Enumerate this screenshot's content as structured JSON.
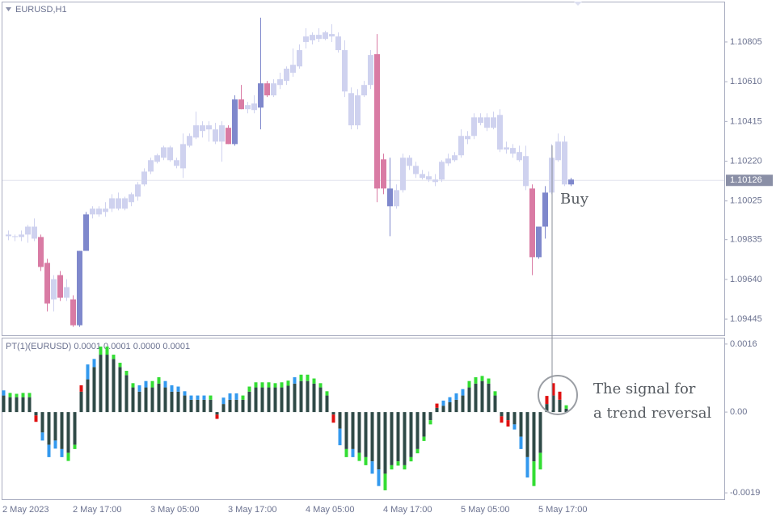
{
  "chart_data": [
    {
      "type": "candlestick",
      "title": "EURUSD,H1",
      "categories": [
        "2 May 2023",
        null,
        null,
        null,
        null,
        null,
        null,
        null,
        null,
        null,
        null,
        "2 May 17:00",
        null,
        null,
        null,
        null,
        null,
        null,
        null,
        null,
        null,
        null,
        null,
        "3 May 05:00",
        null,
        null,
        null,
        null,
        null,
        null,
        null,
        null,
        null,
        null,
        null,
        "3 May 17:00",
        null,
        null,
        null,
        null,
        null,
        null,
        null,
        null,
        null,
        null,
        null,
        "4 May 05:00",
        null,
        null,
        null,
        null,
        null,
        null,
        null,
        null,
        null,
        null,
        null,
        "4 May 17:00",
        null,
        null,
        null,
        null,
        null,
        null,
        null,
        null,
        null,
        null,
        null,
        "5 May 05:00",
        null,
        null,
        null,
        null,
        null,
        null,
        null,
        null,
        null,
        null,
        null,
        "5 May 17:00",
        null,
        null,
        null,
        null
      ],
      "open": [
        1.0986,
        1.09852,
        1.09848,
        1.0986,
        1.09899,
        1.09848,
        1.09721,
        1.09542,
        1.09661,
        1.0955,
        1.09542,
        1.09415,
        1.0978,
        1.09959,
        1.09959,
        1.09987,
        1.09987,
        1.10038,
        1.09987,
        1.10019,
        1.10046,
        1.10106,
        1.10169,
        1.10217,
        1.10237,
        1.10288,
        1.10225,
        1.10185,
        1.10296,
        1.10336,
        1.10368,
        1.10396,
        1.10376,
        1.10316,
        1.10384,
        1.10304,
        1.10523,
        1.10475,
        1.10471,
        1.10483,
        1.10602,
        1.10543,
        1.10594,
        1.10614,
        1.10654,
        1.10685,
        1.10805,
        1.10813,
        1.1084,
        1.1082,
        1.10844,
        1.10832,
        1.10765,
        1.10554,
        1.10396,
        1.10543,
        1.10594,
        1.10745,
        1.10229,
        1.10086,
        1.09999,
        1.10078,
        1.10237,
        1.10197,
        1.10157,
        1.10146,
        1.1013,
        1.1013,
        1.10209,
        1.10225,
        1.10249,
        1.10344,
        1.10344,
        1.10435,
        1.10384,
        1.10435,
        1.10447,
        1.10277,
        1.10285,
        1.10265,
        1.10245,
        1.10086,
        1.09749,
        1.09899,
        1.10066,
        1.10225,
        1.10316,
        1.10106
      ],
      "high": [
        1.0988,
        1.0986,
        1.0988,
        1.09907,
        1.09939,
        1.0986,
        1.09741,
        1.09661,
        1.09681,
        1.09641,
        1.09562,
        1.0978,
        1.09971,
        1.09999,
        1.09999,
        1.10019,
        1.10058,
        1.10066,
        1.10046,
        1.10066,
        1.10118,
        1.10185,
        1.10237,
        1.10257,
        1.10296,
        1.10296,
        1.10237,
        1.10356,
        1.10356,
        1.10463,
        1.10416,
        1.10416,
        1.10408,
        1.10416,
        1.10396,
        1.10543,
        1.10594,
        1.10511,
        1.10543,
        1.10924,
        1.10614,
        1.10622,
        1.10654,
        1.10685,
        1.10773,
        1.10793,
        1.10872,
        1.10852,
        1.10872,
        1.1086,
        1.10892,
        1.10852,
        1.10813,
        1.10582,
        1.10574,
        1.10614,
        1.10765,
        1.10844,
        1.10257,
        1.10237,
        1.10106,
        1.10257,
        1.10249,
        1.10217,
        1.10177,
        1.10169,
        1.10157,
        1.10225,
        1.10257,
        1.10265,
        1.10376,
        1.10368,
        1.10455,
        1.10455,
        1.10455,
        1.10463,
        1.10475,
        1.10316,
        1.10304,
        1.10296,
        1.10296,
        1.10106,
        1.09899,
        1.10098,
        1.10304,
        1.10356,
        1.10344,
        1.10138
      ],
      "low": [
        1.09832,
        1.09828,
        1.09828,
        1.0982,
        1.09828,
        1.09681,
        1.09483,
        1.09483,
        1.09534,
        1.09534,
        1.09407,
        1.09407,
        1.0978,
        1.09939,
        1.09947,
        1.09947,
        1.09971,
        1.09979,
        1.09979,
        1.09999,
        1.10026,
        1.10098,
        1.10157,
        1.10209,
        1.10225,
        1.10217,
        1.10185,
        1.10138,
        1.10288,
        1.10328,
        1.10336,
        1.10316,
        1.10304,
        1.10217,
        1.10304,
        1.10296,
        1.10475,
        1.10455,
        1.10455,
        1.10376,
        1.10535,
        1.10535,
        1.10574,
        1.10594,
        1.10634,
        1.10674,
        1.10773,
        1.10793,
        1.10805,
        1.10813,
        1.10805,
        1.10753,
        1.10535,
        1.10376,
        1.10376,
        1.10535,
        1.10574,
        1.10019,
        1.10058,
        1.09852,
        1.09987,
        1.10066,
        1.10177,
        1.10138,
        1.1013,
        1.10118,
        1.10098,
        1.10118,
        1.10197,
        1.10217,
        1.10237,
        1.10304,
        1.10328,
        1.10396,
        1.10368,
        1.10376,
        1.10265,
        1.10257,
        1.10237,
        1.10217,
        1.10078,
        1.09661,
        1.09741,
        1.0984,
        1.10058,
        1.10217,
        1.10098,
        1.10098
      ],
      "close": [
        1.09852,
        1.09848,
        1.0986,
        1.09899,
        1.0984,
        1.09701,
        1.09522,
        1.09641,
        1.0955,
        1.09602,
        1.09415,
        1.0978,
        1.09959,
        1.09987,
        1.09987,
        1.09971,
        1.10038,
        1.09987,
        1.10038,
        1.10058,
        1.10106,
        1.10169,
        1.10225,
        1.10249,
        1.10288,
        1.10225,
        1.10197,
        1.10304,
        1.10344,
        1.10396,
        1.10396,
        1.10376,
        1.10316,
        1.10396,
        1.10304,
        1.10523,
        1.10475,
        1.10495,
        1.10503,
        1.10602,
        1.10543,
        1.10602,
        1.10622,
        1.10674,
        1.10693,
        1.10765,
        1.10832,
        1.1084,
        1.1082,
        1.10852,
        1.10832,
        1.10765,
        1.10562,
        1.10396,
        1.10543,
        1.10594,
        1.10741,
        1.10086,
        1.10086,
        1.09999,
        1.10078,
        1.10237,
        1.10197,
        1.10157,
        1.10138,
        1.1013,
        1.10118,
        1.10217,
        1.10233,
        1.10249,
        1.10344,
        1.10328,
        1.10435,
        1.10408,
        1.10435,
        1.10384,
        1.10277,
        1.10288,
        1.10257,
        1.10225,
        1.10098,
        1.09749,
        1.09899,
        1.10066,
        1.10237,
        1.10316,
        1.10106,
        1.1013
      ],
      "colors": [
        "#cfd2ef",
        "#cfd2ef",
        "#cfd2ef",
        "#cfd2ef",
        "#cfd2ef",
        "#d97ba4",
        "#d97ba4",
        "#cfd2ef",
        "#d97ba4",
        "#cfd2ef",
        "#d97ba4",
        "#7f88cc",
        "#7f88cc",
        "#cfd2ef",
        "#cfd2ef",
        "#cfd2ef",
        "#cfd2ef",
        "#cfd2ef",
        "#cfd2ef",
        "#cfd2ef",
        "#cfd2ef",
        "#cfd2ef",
        "#cfd2ef",
        "#cfd2ef",
        "#cfd2ef",
        "#cfd2ef",
        "#cfd2ef",
        "#cfd2ef",
        "#cfd2ef",
        "#cfd2ef",
        "#cfd2ef",
        "#cfd2ef",
        "#cfd2ef",
        "#cfd2ef",
        "#d97ba4",
        "#7f88cc",
        "#d97ba4",
        "#cfd2ef",
        "#cfd2ef",
        "#7f88cc",
        "#d97ba4",
        "#cfd2ef",
        "#cfd2ef",
        "#cfd2ef",
        "#cfd2ef",
        "#cfd2ef",
        "#cfd2ef",
        "#cfd2ef",
        "#cfd2ef",
        "#cfd2ef",
        "#cfd2ef",
        "#cfd2ef",
        "#cfd2ef",
        "#cfd2ef",
        "#cfd2ef",
        "#cfd2ef",
        "#cfd2ef",
        "#d97ba4",
        "#d97ba4",
        "#7f88cc",
        "#cfd2ef",
        "#cfd2ef",
        "#cfd2ef",
        "#cfd2ef",
        "#cfd2ef",
        "#cfd2ef",
        "#cfd2ef",
        "#cfd2ef",
        "#cfd2ef",
        "#cfd2ef",
        "#cfd2ef",
        "#cfd2ef",
        "#cfd2ef",
        "#cfd2ef",
        "#cfd2ef",
        "#cfd2ef",
        "#cfd2ef",
        "#cfd2ef",
        "#cfd2ef",
        "#cfd2ef",
        "#cfd2ef",
        "#d97ba4",
        "#7f88cc",
        "#7f88cc",
        "#cfd2ef",
        "#cfd2ef",
        "#cfd2ef",
        "#7f88cc"
      ],
      "ylim": [
        1.09366,
        1.11003
      ],
      "yticks": [
        1.10805,
        {
          "value": 1.1061,
          "label": "1.10610"
        },
        1.10415,
        {
          "value": 1.1022,
          "label": "1.10220"
        },
        1.10025,
        1.09835,
        {
          "value": 1.0964,
          "label": "1.09640"
        },
        1.09445
      ],
      "last_price": 1.10126,
      "annotations": [
        "Buy"
      ]
    },
    {
      "type": "histogram-indicator",
      "title": "PT(1)(EURUSD) 0.0001 0.0001 0.0000 0.0001",
      "values": [
        0.00039,
        0.00035,
        0.00035,
        0.00035,
        0.00035,
        -8e-05,
        -0.00048,
        -0.00077,
        -0.00067,
        -0.00087,
        -0.00096,
        -0.00077,
        0.00048,
        0.00077,
        0.00106,
        0.00135,
        0.00135,
        0.00125,
        0.00106,
        0.00087,
        0.00058,
        0.00048,
        0.00058,
        0.00058,
        0.00067,
        0.00058,
        0.00048,
        0.00048,
        0.00039,
        0.00029,
        0.00029,
        0.00029,
        0.00029,
        -6e-05,
        0.00019,
        0.00029,
        0.00029,
        0.00029,
        0.00048,
        0.00058,
        0.00058,
        0.00058,
        0.00058,
        0.00058,
        0.00062,
        0.00067,
        0.00073,
        0.00073,
        0.00067,
        0.00058,
        0.00039,
        -6e-05,
        -0.00039,
        -0.00087,
        -0.00087,
        -0.00096,
        -0.00106,
        -0.00116,
        -0.00135,
        -0.00145,
        -0.00125,
        -0.00116,
        -0.00125,
        -0.00106,
        -0.00087,
        -0.00058,
        -0.00019,
        0.0001,
        0.00015,
        0.00023,
        0.00029,
        0.00039,
        0.00058,
        0.00067,
        0.00073,
        0.00067,
        0.00039,
        -0.0001,
        -0.00019,
        -0.00029,
        -0.00058,
        -0.00106,
        -0.00116,
        -0.00096,
        0.00019,
        0.00039,
        0.00029,
        8e-05
      ],
      "tips": [
        0.00012,
        0.0001,
        8e-05,
        0.0001,
        0.0001,
        -0.00015,
        -0.00019,
        -0.00029,
        -0.00019,
        -0.00019,
        -0.00019,
        -0.0001,
        0.00015,
        0.00035,
        0.00019,
        0.00019,
        0.00019,
        0.0001,
        0.0001,
        0.0001,
        0.0001,
        0.00015,
        0.00015,
        0.00015,
        0.00015,
        0.00015,
        0.00015,
        0.00012,
        0.0001,
        0.0001,
        0.0001,
        0.0001,
        0.0001,
        -0.0001,
        0.00015,
        0.00015,
        0.00015,
        0.0001,
        0.00012,
        0.00012,
        0.00012,
        0.00012,
        0.0001,
        0.00012,
        0.00012,
        0.00015,
        0.00015,
        0.00015,
        0.00012,
        0.0001,
        0.0001,
        -0.00019,
        -0.00039,
        -0.00019,
        -0.00019,
        -0.00019,
        -0.00019,
        -0.00029,
        -0.00039,
        -0.00039,
        -0.0001,
        -0.0001,
        -0.0001,
        -0.0001,
        -0.0001,
        -0.0001,
        -0.0001,
        0.0001,
        0.00012,
        0.00012,
        0.00015,
        0.00015,
        0.00015,
        0.00015,
        0.00012,
        0.00012,
        0.0001,
        -0.00015,
        -0.00015,
        -0.00012,
        -0.00029,
        -0.00048,
        -0.00058,
        -0.00039,
        0.00019,
        0.00029,
        0.00019,
        8e-05
      ],
      "tip_colors": [
        "#3399ee",
        "#33dd33",
        "#33dd33",
        "#33dd33",
        "#33dd33",
        "#e01010",
        "#3399ee",
        "#3399ee",
        "#3399ee",
        "#3399ee",
        "#33dd33",
        "#33dd33",
        "#e01010",
        "#3399ee",
        "#3399ee",
        "#33dd33",
        "#33dd33",
        "#33dd33",
        "#33dd33",
        "#33dd33",
        "#33dd33",
        "#3399ee",
        "#3399ee",
        "#33dd33",
        "#33dd33",
        "#3399ee",
        "#3399ee",
        "#3399ee",
        "#3399ee",
        "#3399ee",
        "#3399ee",
        "#3399ee",
        "#33dd33",
        "#e01010",
        "#3399ee",
        "#3399ee",
        "#3399ee",
        "#33dd33",
        "#33dd33",
        "#33dd33",
        "#33dd33",
        "#33dd33",
        "#33dd33",
        "#33dd33",
        "#33dd33",
        "#3399ee",
        "#33dd33",
        "#33dd33",
        "#33dd33",
        "#33dd33",
        "#33dd33",
        "#e01010",
        "#3399ee",
        "#33dd33",
        "#3399ee",
        "#33dd33",
        "#33dd33",
        "#3399ee",
        "#3399ee",
        "#33dd33",
        "#33dd33",
        "#33dd33",
        "#33dd33",
        "#33dd33",
        "#33dd33",
        "#33dd33",
        "#33dd33",
        "#e01010",
        "#3399ee",
        "#3399ee",
        "#3399ee",
        "#3399ee",
        "#33dd33",
        "#33dd33",
        "#33dd33",
        "#33dd33",
        "#33dd33",
        "#e01010",
        "#e01010",
        "#3399ee",
        "#3399ee",
        "#3399ee",
        "#33dd33",
        "#33dd33",
        "#e01010",
        "#e01010",
        "#e01010",
        "#33dd33"
      ],
      "color": "#2f4a47",
      "ylim": [
        -0.00205,
        0.00175
      ],
      "yticks": [
        0.0016,
        {
          "value": 0,
          "label": "0.00"
        },
        -0.0019
      ],
      "annotations": [
        "The signal for",
        "a trend reversal"
      ]
    }
  ]
}
